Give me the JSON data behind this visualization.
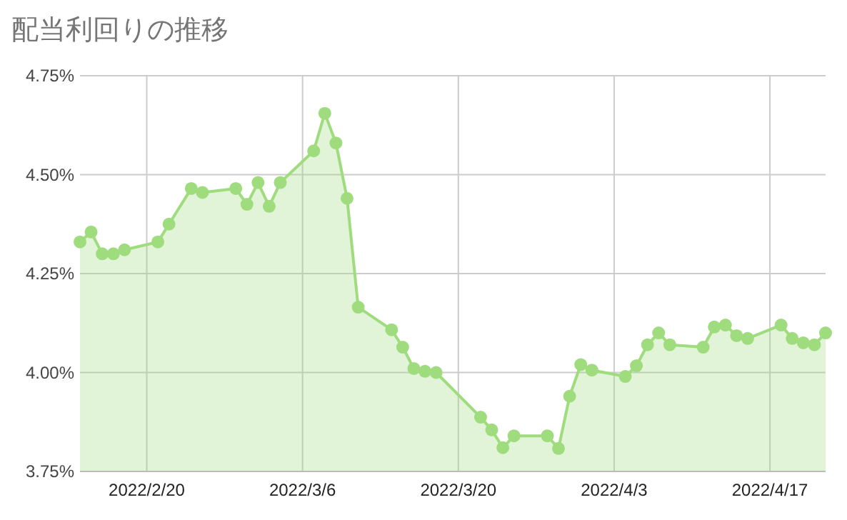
{
  "chart_data": {
    "type": "area",
    "title": "配当利回りの推移",
    "x": [
      "2022-02-14",
      "2022-02-15",
      "2022-02-16",
      "2022-02-17",
      "2022-02-18",
      "2022-02-21",
      "2022-02-22",
      "2022-02-24",
      "2022-02-25",
      "2022-02-28",
      "2022-03-01",
      "2022-03-02",
      "2022-03-03",
      "2022-03-04",
      "2022-03-07",
      "2022-03-08",
      "2022-03-09",
      "2022-03-10",
      "2022-03-11",
      "2022-03-14",
      "2022-03-15",
      "2022-03-16",
      "2022-03-17",
      "2022-03-18",
      "2022-03-22",
      "2022-03-23",
      "2022-03-24",
      "2022-03-25",
      "2022-03-28",
      "2022-03-29",
      "2022-03-30",
      "2022-03-31",
      "2022-04-01",
      "2022-04-04",
      "2022-04-05",
      "2022-04-06",
      "2022-04-07",
      "2022-04-08",
      "2022-04-11",
      "2022-04-12",
      "2022-04-13",
      "2022-04-14",
      "2022-04-15",
      "2022-04-18",
      "2022-04-19",
      "2022-04-20",
      "2022-04-21",
      "2022-04-22"
    ],
    "series": [
      {
        "color": "#9fdc7e",
        "values": [
          4.33,
          4.355,
          4.3,
          4.3,
          4.31,
          4.33,
          4.375,
          4.465,
          4.455,
          4.465,
          4.425,
          4.48,
          4.42,
          4.48,
          4.56,
          4.655,
          4.58,
          4.44,
          4.165,
          4.108,
          4.064,
          4.01,
          4.003,
          4.0,
          3.887,
          3.855,
          3.81,
          3.84,
          3.84,
          3.808,
          3.94,
          4.02,
          4.006,
          3.99,
          4.017,
          4.07,
          4.1,
          4.07,
          4.064,
          4.115,
          4.12,
          4.093,
          4.086,
          4.12,
          4.086,
          4.075,
          4.07,
          4.1
        ]
      }
    ],
    "xlim": [
      "2022-02-14",
      "2022-04-22"
    ],
    "xticks": [
      {
        "value": "2022-02-20",
        "label": "2022/2/20"
      },
      {
        "value": "2022-03-06",
        "label": "2022/3/6"
      },
      {
        "value": "2022-03-20",
        "label": "2022/3/20"
      },
      {
        "value": "2022-04-03",
        "label": "2022/4/3"
      },
      {
        "value": "2022-04-17",
        "label": "2022/4/17"
      }
    ],
    "ylim": [
      3.75,
      4.75
    ],
    "yticks": [
      {
        "value": 3.75,
        "label": "3.75%"
      },
      {
        "value": 4.0,
        "label": "4.00%"
      },
      {
        "value": 4.25,
        "label": "4.25%"
      },
      {
        "value": 4.5,
        "label": "4.50%"
      },
      {
        "value": 4.75,
        "label": "4.75%"
      }
    ],
    "grid": true,
    "marker": "circle"
  }
}
